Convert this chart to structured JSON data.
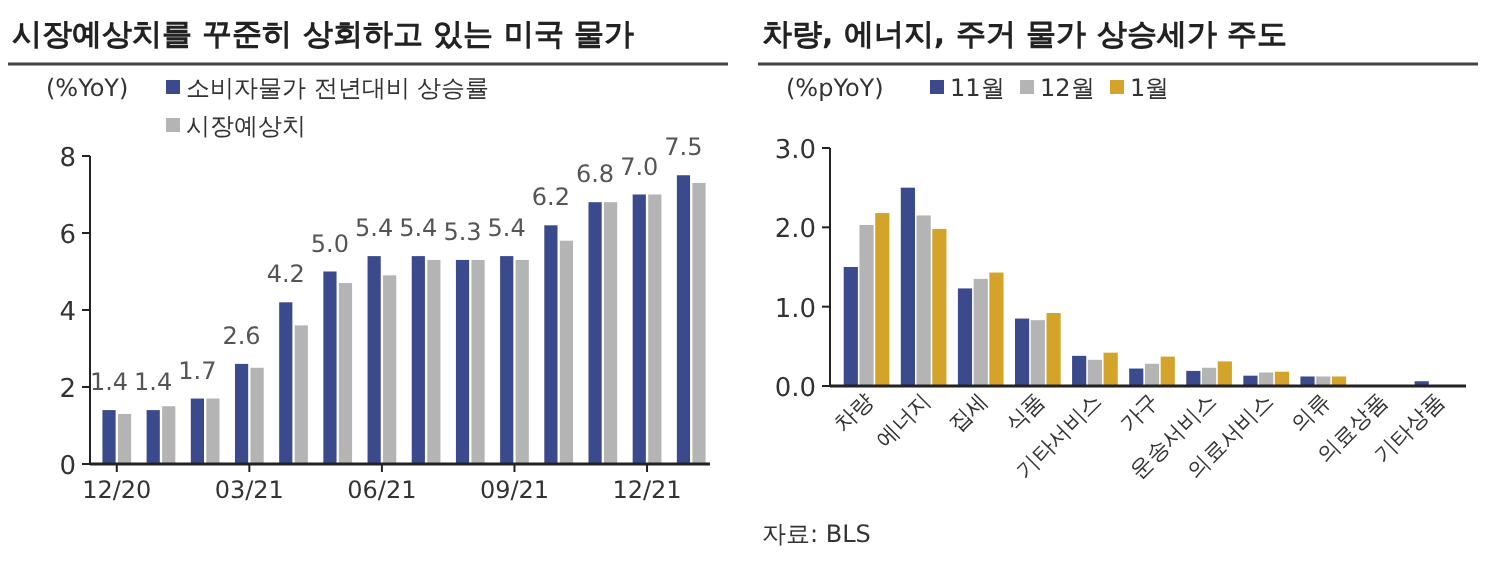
{
  "chart_data": [
    {
      "type": "bar",
      "title": "시장예상치를 꾸준히 상회하고 있는 미국 물가",
      "ylabel": "(%YoY)",
      "categories": [
        "12/20",
        null,
        null,
        "03/21",
        null,
        null,
        "06/21",
        null,
        null,
        "09/21",
        null,
        null,
        "12/21",
        null
      ],
      "series": [
        {
          "name": "소비자물가 전년대비 상승률",
          "color": "#3b4a8c",
          "values": [
            1.4,
            1.4,
            1.7,
            2.6,
            4.2,
            5.0,
            5.4,
            5.4,
            5.3,
            5.4,
            6.2,
            6.8,
            7.0,
            7.5
          ],
          "value_labels": [
            "1.4",
            "1.4",
            "1.7",
            "2.6",
            "4.2",
            "5.0",
            "5.4",
            "5.4",
            "5.3",
            "5.4",
            "6.2",
            "6.8",
            "7.0",
            "7.5"
          ]
        },
        {
          "name": "시장예상치",
          "color": "#b4b4b4",
          "values": [
            1.3,
            1.5,
            1.7,
            2.5,
            3.6,
            4.7,
            4.9,
            5.3,
            5.3,
            5.3,
            5.8,
            6.8,
            7.0,
            7.3
          ]
        }
      ],
      "ylim": [
        0,
        8
      ],
      "yticks": [
        0,
        2,
        4,
        6,
        8
      ],
      "grid": false,
      "legend": "top left"
    },
    {
      "type": "bar",
      "title": "차량, 에너지, 주거 물가 상승세가 주도",
      "ylabel": "(%pYoY)",
      "categories": [
        "차량",
        "에너지",
        "집세",
        "식품",
        "기타서비스",
        "가구",
        "운송서비스",
        "의료서비스",
        "의류",
        "의료상품",
        "기타상품"
      ],
      "series": [
        {
          "name": "11월",
          "color": "#3b4a8c",
          "values": [
            1.5,
            2.5,
            1.23,
            0.85,
            0.38,
            0.22,
            0.19,
            0.13,
            0.12,
            0,
            0.06
          ]
        },
        {
          "name": "12월",
          "color": "#b4b4b4",
          "values": [
            2.03,
            2.15,
            1.35,
            0.83,
            0.33,
            0.28,
            0.23,
            0.17,
            0.12,
            0,
            0
          ]
        },
        {
          "name": "1월",
          "color": "#d4a32a",
          "values": [
            2.18,
            1.98,
            1.43,
            0.92,
            0.42,
            0.37,
            0.31,
            0.18,
            0.12,
            0,
            0
          ]
        }
      ],
      "ylim": [
        0,
        3
      ],
      "yticks": [
        {
          "value": 0,
          "label": "0.0"
        },
        {
          "value": 1,
          "label": "1.0"
        },
        {
          "value": 2,
          "label": "2.0"
        },
        {
          "value": 3,
          "label": "3.0"
        }
      ],
      "grid": false,
      "legend": "top left",
      "annotations": [
        "자료: BLS"
      ]
    }
  ]
}
